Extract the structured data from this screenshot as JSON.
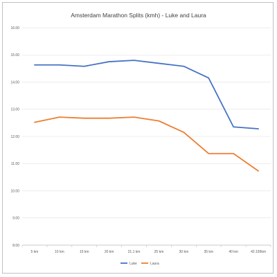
{
  "chart_data": {
    "type": "line",
    "title": "Amsterdam Marathon Splits (kmh) - Luke and Laura",
    "categories": [
      "5 km",
      "10 km",
      "15 km",
      "20 km",
      "21.1 km",
      "25 km",
      "30 km",
      "35 km",
      "40 km",
      "42.195km"
    ],
    "series": [
      {
        "name": "Luke",
        "color": "#4472c4",
        "values": [
          14.63,
          14.63,
          14.58,
          14.75,
          14.8,
          14.69,
          14.58,
          14.15,
          12.35,
          12.28
        ]
      },
      {
        "name": "Laura",
        "color": "#ed7d31",
        "values": [
          12.52,
          12.71,
          12.67,
          12.67,
          12.71,
          12.57,
          12.15,
          11.37,
          11.37,
          10.73
        ]
      }
    ],
    "ylim": [
      8,
      16
    ],
    "yticks": [
      "8.00",
      "9.00",
      "10.00",
      "11.00",
      "12.00",
      "13.00",
      "14.00",
      "15.00",
      "16.00"
    ],
    "grid": true,
    "legend_position": "bottom",
    "xlabel": "",
    "ylabel": ""
  }
}
